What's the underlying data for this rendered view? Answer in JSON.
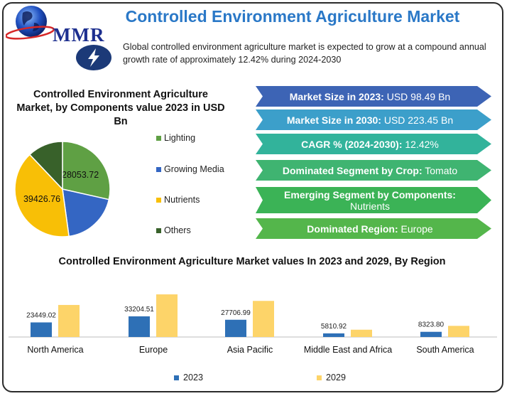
{
  "header": {
    "logo_text": "MMR",
    "title": "Controlled Environment Agriculture Market",
    "summary": "Global controlled environment agriculture market is expected to grow at a compound annual growth rate of approximately 12.42% during 2024-2030",
    "bolt_icon": "lightning-bolt-icon"
  },
  "colors": {
    "title_blue": "#2a78c7",
    "lighting": "#5fa044",
    "growing_media": "#3466c3",
    "nutrients": "#f8bf06",
    "others": "#38612a",
    "bar_2023": "#2e70b6",
    "bar_2029": "#fdd469"
  },
  "highlights": [
    {
      "label": "Market Size in 2023:",
      "value": "USD 98.49 Bn",
      "color": "#3d64b5"
    },
    {
      "label": "Market Size in 2030:",
      "value": "USD 223.45 Bn",
      "color": "#3c9fca"
    },
    {
      "label": "CAGR % (2024-2030):",
      "value": "12.42%",
      "color": "#32b39b"
    },
    {
      "label": "Dominated Segment by Crop:",
      "value": "Tomato",
      "color": "#3fb471"
    },
    {
      "label": "Emerging Segment by Components:",
      "value": "Nutrients",
      "color": "#3bb356"
    },
    {
      "label": "Dominated Region:",
      "value": "Europe",
      "color": "#54b64b"
    }
  ],
  "chart_data": [
    {
      "type": "pie",
      "title": "Controlled Environment Agriculture Market, by Components value 2023 in USD Bn",
      "slices": [
        {
          "name": "Lighting",
          "value": 28053.72,
          "label": "28053.72",
          "color": "#5fa044"
        },
        {
          "name": "Growing Media",
          "value": 19000,
          "label": "",
          "color": "#3466c3"
        },
        {
          "name": "Nutrients",
          "value": 39426.76,
          "label": "39426.76",
          "color": "#f8bf06"
        },
        {
          "name": "Others",
          "value": 11900,
          "label": "",
          "color": "#38612a"
        }
      ],
      "legend_placement": "right"
    },
    {
      "type": "bar",
      "title": "Controlled Environment Agriculture Market values In 2023 and 2029, By Region",
      "categories": [
        "North America",
        "Europe",
        "Asia Pacific",
        "Middle East and Africa",
        "South America"
      ],
      "series": [
        {
          "name": "2023",
          "values": [
            23449.02,
            33204.51,
            27706.99,
            5810.92,
            8323.8
          ],
          "labels": [
            "23449.02",
            "33204.51",
            "27706.99",
            "5810.92",
            "8323.80"
          ],
          "color": "#2e70b6"
        },
        {
          "name": "2029",
          "values": [
            51500,
            68500,
            58000,
            11700,
            17900
          ],
          "color": "#fdd469"
        }
      ],
      "ylim": [
        0,
        72000
      ],
      "legend_placement": "bottom",
      "grid": false
    }
  ]
}
